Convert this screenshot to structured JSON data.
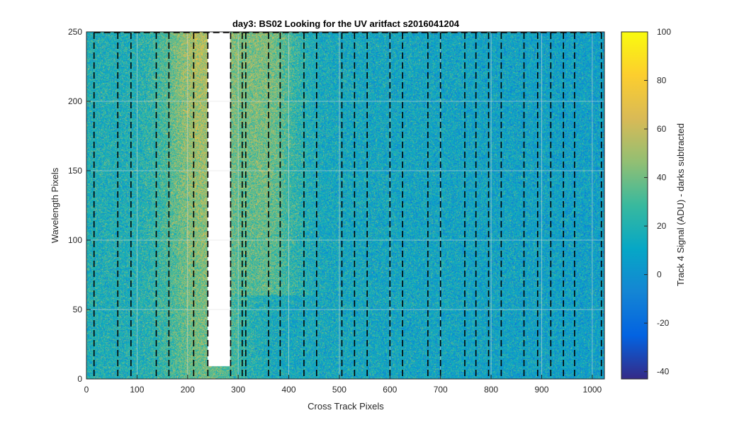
{
  "chart_data": {
    "type": "heatmap",
    "title": "day3: BS02  Looking for the UV aritfact  s2016041204",
    "xlabel": "Cross Track Pixels",
    "ylabel": "Wavelength Pixels",
    "xlim": [
      0,
      1024
    ],
    "ylim": [
      0,
      250
    ],
    "xticks": [
      0,
      100,
      200,
      300,
      400,
      500,
      600,
      700,
      800,
      900,
      1000
    ],
    "yticks": [
      0,
      50,
      100,
      150,
      200,
      250
    ],
    "grid": true,
    "colormap": "parula",
    "colorbar": {
      "label": "Track 4 Signal (ADU) - darks subtracted",
      "clim": [
        -43,
        100
      ],
      "ticks": [
        -40,
        -20,
        0,
        20,
        40,
        60,
        80,
        100
      ]
    },
    "saturated_region": {
      "x_range": [
        240,
        285
      ],
      "y_range": [
        9,
        250
      ],
      "color": "#ffffff"
    },
    "signal_regions": [
      {
        "x_center": 230,
        "x_halfwidth": 80,
        "y_range": [
          0,
          250
        ],
        "level": 58
      },
      {
        "x_center": 360,
        "x_halfwidth": 60,
        "y_range": [
          60,
          250
        ],
        "level": 45
      }
    ],
    "background_level": 18,
    "boundary_lines_x": [
      15,
      62,
      88,
      138,
      163,
      212,
      240,
      285,
      308,
      315,
      360,
      383,
      430,
      455,
      505,
      530,
      555,
      600,
      625,
      675,
      700,
      748,
      770,
      795,
      820,
      865,
      892,
      918,
      943,
      965,
      1018
    ],
    "boundary_box_top_y": 250
  },
  "colors": {
    "parula_stops": [
      "#352a87",
      "#0363e1",
      "#1485d4",
      "#06a7c6",
      "#38b99e",
      "#92bf73",
      "#d9ba56",
      "#fcce2e",
      "#f9fb0e"
    ],
    "boundary_line": "#000000",
    "grid": "#dcdcdc"
  }
}
